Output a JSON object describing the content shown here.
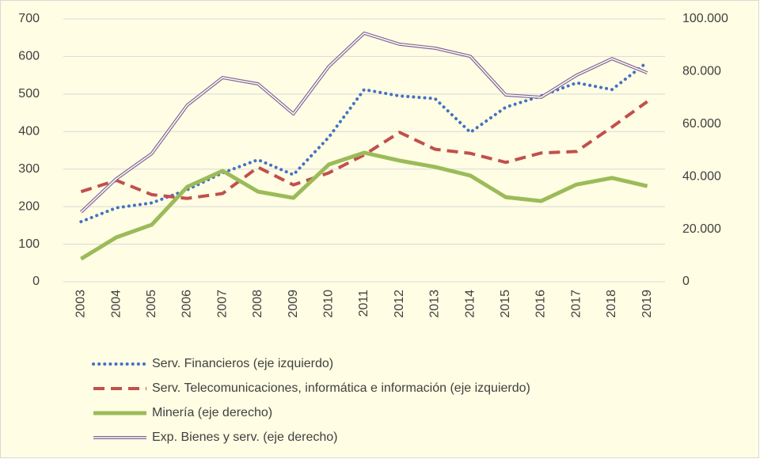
{
  "chart_data": {
    "type": "line",
    "categories": [
      "2003",
      "2004",
      "2005",
      "2006",
      "2007",
      "2008",
      "2009",
      "2010",
      "2011",
      "2012",
      "2013",
      "2014",
      "2015",
      "2016",
      "2017",
      "2018",
      "2019"
    ],
    "series": [
      {
        "name": "Serv. Financieros (eje izquierdo)",
        "color": "#4472c4",
        "style": "dotted",
        "axis": "y",
        "values": [
          160,
          197,
          210,
          245,
          290,
          325,
          285,
          385,
          512,
          495,
          488,
          398,
          465,
          495,
          530,
          512,
          585
        ]
      },
      {
        "name": "Serv. Telecomunicaciones, informática e información (eje izquierdo)",
        "color": "#c0504d",
        "style": "dashed",
        "axis": "y",
        "values": [
          240,
          270,
          232,
          222,
          235,
          305,
          258,
          290,
          338,
          398,
          353,
          342,
          318,
          343,
          347,
          412,
          480
        ]
      },
      {
        "name": "Minería (eje derecho)",
        "color": "#9bbb59",
        "style": "solid",
        "axis": "y2",
        "values": [
          8700,
          16900,
          21700,
          36100,
          42200,
          34300,
          31900,
          44600,
          49100,
          46100,
          43700,
          40400,
          32200,
          30700,
          37000,
          39500,
          36400
        ]
      },
      {
        "name": "Exp. Bienes y serv. (eje derecho)",
        "color": "#8064a2",
        "style": "double",
        "axis": "y2",
        "values": [
          26500,
          39200,
          48800,
          67200,
          77700,
          75300,
          63900,
          81900,
          94600,
          90400,
          88900,
          85800,
          71100,
          70200,
          78600,
          84900,
          79500
        ]
      }
    ],
    "ylim": [
      0,
      700
    ],
    "yticks": [
      0,
      100,
      200,
      300,
      400,
      500,
      600,
      700
    ],
    "y2lim": [
      0,
      100000
    ],
    "y2ticks": [
      0,
      {
        "value": 20000,
        "label": "20.000"
      },
      {
        "value": 40000,
        "label": "40.000"
      },
      {
        "value": 60000,
        "label": "60.000"
      },
      {
        "value": 80000,
        "label": "80.000"
      },
      {
        "value": 100000,
        "label": "100.000"
      }
    ],
    "grid": true,
    "legend": "bottom"
  }
}
